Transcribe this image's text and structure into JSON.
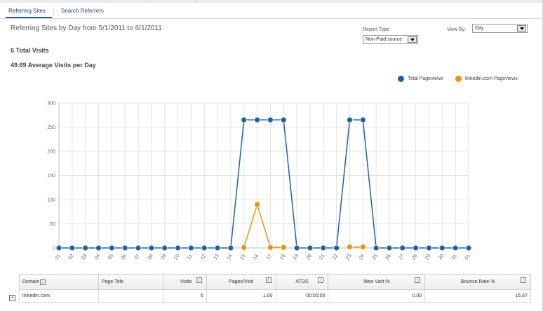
{
  "tabs": {
    "items": [
      {
        "label": "Referring Sites",
        "active": true
      },
      {
        "label": "Search Referrers",
        "active": false
      }
    ],
    "separator": "|"
  },
  "report": {
    "title": "Referring Sites by Day from 5/1/2011 to 6/1/2011",
    "total_visits": "6 Total Visits",
    "avg_visits": "49.69 Average Visits per Day",
    "report_type_label": "Report Type",
    "report_type_value": "Non-Paid source",
    "view_by_label": "View By:",
    "view_by_value": "Day"
  },
  "legend": [
    {
      "name": "Total Pageviews",
      "color": "#1f5fb0"
    },
    {
      "name": "linkedin.com Pageviews",
      "color": "#f0900c"
    }
  ],
  "chart_data": {
    "type": "line",
    "x": [
      "01",
      "02",
      "03",
      "04",
      "05",
      "06",
      "07",
      "08",
      "09",
      "10",
      "11",
      "12",
      "13",
      "14",
      "15",
      "16",
      "17",
      "18",
      "19",
      "20",
      "21",
      "22",
      "23",
      "24",
      "25",
      "26",
      "27",
      "28",
      "29",
      "30",
      "31",
      "01"
    ],
    "series": [
      {
        "name": "Total Pageviews",
        "color": "#1f5fb0",
        "values": [
          0,
          0,
          0,
          0,
          0,
          0,
          0,
          0,
          0,
          0,
          0,
          0,
          0,
          0,
          265,
          265,
          265,
          265,
          0,
          0,
          0,
          0,
          265,
          265,
          0,
          0,
          0,
          0,
          0,
          0,
          0,
          0
        ]
      },
      {
        "name": "linkedin.com Pageviews",
        "color": "#f0900c",
        "values": [
          null,
          null,
          null,
          null,
          null,
          null,
          null,
          null,
          null,
          null,
          null,
          null,
          null,
          null,
          1,
          90,
          1,
          1,
          null,
          null,
          null,
          null,
          2,
          2,
          null,
          null,
          null,
          null,
          null,
          null,
          null,
          null
        ]
      }
    ],
    "yticks": [
      0,
      50,
      100,
      150,
      200,
      250,
      300
    ],
    "ylim": [
      0,
      300
    ],
    "grid": true
  },
  "table": {
    "headers": [
      {
        "label": "Domain",
        "info": "i",
        "align": "left"
      },
      {
        "label": "Page Title",
        "info": "",
        "align": "left"
      },
      {
        "label": "Visits",
        "info": "i",
        "align": "left"
      },
      {
        "label": "Pages/Visit",
        "info": "i",
        "align": "left"
      },
      {
        "label": "ATOS",
        "info": "i",
        "align": "left"
      },
      {
        "label": "New Visit %",
        "info": "i",
        "align": "left"
      },
      {
        "label": "Bounce Rate %",
        "info": "i",
        "align": "left"
      }
    ],
    "rows": [
      [
        "linkedin.com",
        "",
        "6",
        "1.00",
        "00:00:00",
        "0.00",
        "16.67"
      ]
    ],
    "expand_symbol": "+"
  }
}
